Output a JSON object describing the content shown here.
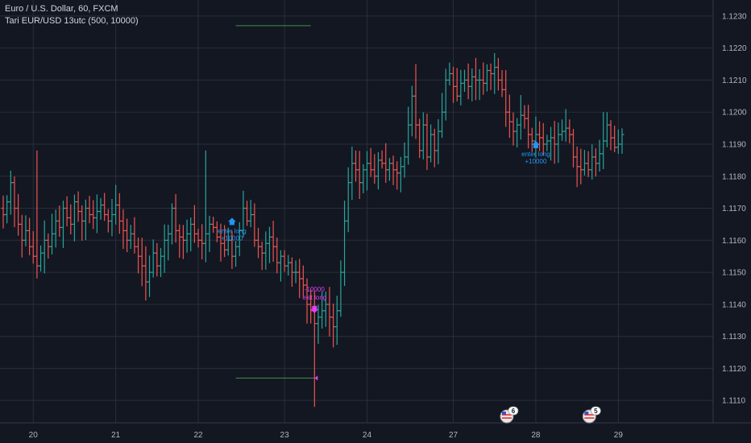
{
  "legend": {
    "symbol_line": "Euro / U.S. Dollar, 60, FXCM",
    "indicator_line": "Tari EUR/USD 13utc (500, 10000)"
  },
  "colors": {
    "background": "#131722",
    "grid": "#2a2e39",
    "up": "#26a69a",
    "down": "#ef5350",
    "long_signal": "#2196f3",
    "exit_signal": "#e040fb",
    "level_line": "#4caf50",
    "text": "#b2b5be"
  },
  "event_badges": [
    {
      "label": "6",
      "at_day": "28"
    },
    {
      "label": "5",
      "at_day": "29"
    }
  ],
  "chart_data": {
    "type": "ohlc",
    "ylim": [
      1.1103,
      1.1235
    ],
    "yticks": [
      1.111,
      1.112,
      1.113,
      1.114,
      1.115,
      1.116,
      1.117,
      1.118,
      1.119,
      1.12,
      1.121,
      1.122,
      1.123
    ],
    "xticks": [
      {
        "label": "20",
        "bar": 8
      },
      {
        "label": "21",
        "bar": 30
      },
      {
        "label": "22",
        "bar": 52
      },
      {
        "label": "23",
        "bar": 75
      },
      {
        "label": "24",
        "bar": 97
      },
      {
        "label": "27",
        "bar": 120
      },
      {
        "label": "28",
        "bar": 142
      },
      {
        "label": "29",
        "bar": 164
      }
    ],
    "closes": [
      1.1168,
      1.1172,
      1.1178,
      1.117,
      1.1165,
      1.116,
      1.1163,
      1.1158,
      1.1155,
      1.1152,
      1.1156,
      1.116,
      1.1158,
      1.1162,
      1.1166,
      1.1164,
      1.117,
      1.1167,
      1.1165,
      1.1172,
      1.1169,
      1.1166,
      1.117,
      1.1168,
      1.1167,
      1.1169,
      1.1171,
      1.1168,
      1.1166,
      1.1168,
      1.1171,
      1.1166,
      1.1163,
      1.116,
      1.1162,
      1.1158,
      1.1155,
      1.1152,
      1.1147,
      1.115,
      1.1156,
      1.1152,
      1.1155,
      1.116,
      1.1162,
      1.117,
      1.1163,
      1.1161,
      1.116,
      1.1162,
      1.1165,
      1.1162,
      1.116,
      1.1159,
      1.1162,
      1.1165,
      1.1164,
      1.1161,
      1.1159,
      1.1157,
      1.116,
      1.1155,
      1.1158,
      1.1163,
      1.117,
      1.1166,
      1.1168,
      1.116,
      1.1158,
      1.1156,
      1.1159,
      1.1161,
      1.1158,
      1.1153,
      1.1155,
      1.1152,
      1.1153,
      1.115,
      1.115,
      1.1148,
      1.1146,
      1.114,
      1.1138,
      1.1134,
      1.1136,
      1.1138,
      1.114,
      1.1136,
      1.1133,
      1.1138,
      1.115,
      1.1166,
      1.1178,
      1.1184,
      1.1182,
      1.1178,
      1.1182,
      1.1184,
      1.1182,
      1.118,
      1.1185,
      1.1184,
      1.1182,
      1.1184,
      1.1182,
      1.1181,
      1.1183,
      1.1186,
      1.1196,
      1.1205,
      1.1196,
      1.1188,
      1.1196,
      1.1186,
      1.1193,
      1.1188,
      1.1194,
      1.12,
      1.121,
      1.1212,
      1.1208,
      1.1205,
      1.1209,
      1.121,
      1.1208,
      1.1211,
      1.121,
      1.121,
      1.1209,
      1.1213,
      1.1212,
      1.1214,
      1.121,
      1.1207,
      1.12,
      1.1197,
      1.1194,
      1.1196,
      1.1199,
      1.1198,
      1.1193,
      1.1191,
      1.1193,
      1.1192,
      1.119,
      1.1191,
      1.1192,
      1.119,
      1.1193,
      1.1194,
      1.1195,
      1.1193,
      1.1186,
      1.1183,
      1.1182,
      1.1184,
      1.1182,
      1.1186,
      1.1184,
      1.1187,
      1.1191,
      1.1196,
      1.1192,
      1.1189,
      1.119,
      1.1193
    ],
    "signals": [
      {
        "type": "enter_long",
        "bar": 61,
        "price": 1.1166,
        "line1": "enter long",
        "line2": "+10000"
      },
      {
        "type": "exit_long",
        "bar": 83,
        "price": 1.1138,
        "line1": "-10000",
        "line2": "exit long"
      },
      {
        "type": "enter_long",
        "bar": 142,
        "price": 1.119,
        "line1": "enter long",
        "line2": "+10000"
      }
    ],
    "level_lines": [
      {
        "price": 1.1227,
        "from_bar": 62,
        "to_bar": 82
      },
      {
        "price": 1.1117,
        "from_bar": 62,
        "to_bar": 83
      }
    ]
  }
}
